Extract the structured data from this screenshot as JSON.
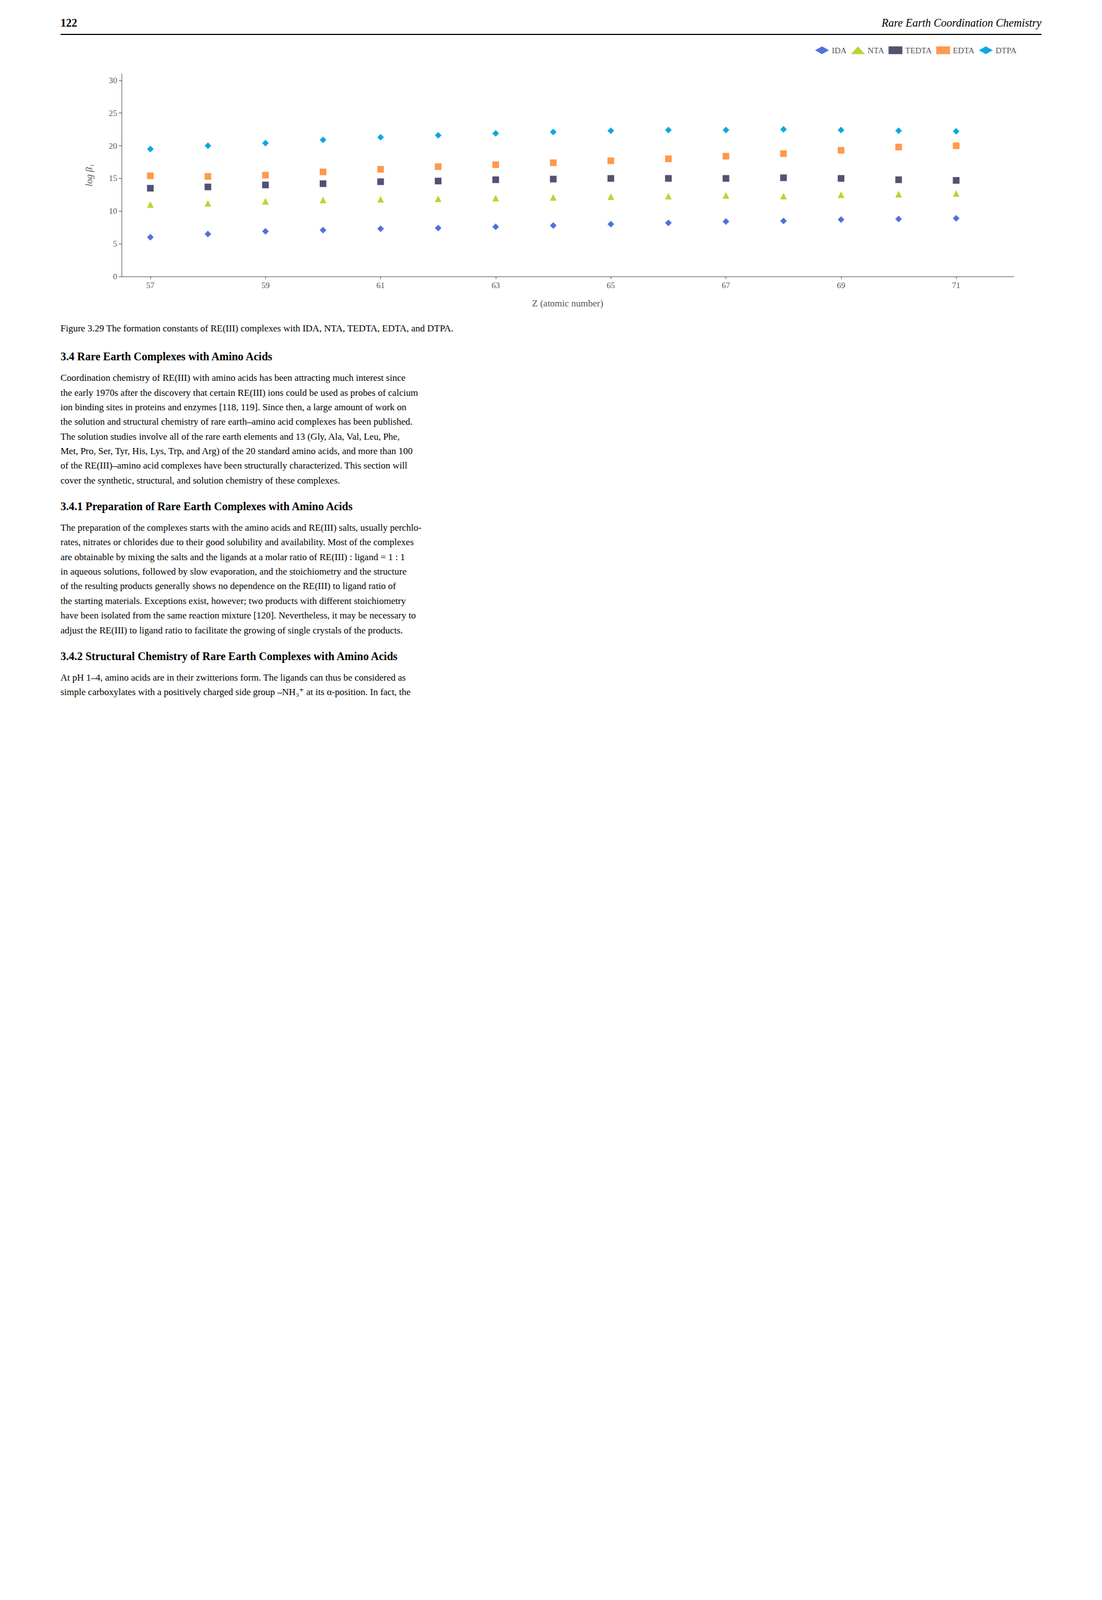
{
  "chart_data": {
    "type": "scatter",
    "xlabel": "Z (atomic number)",
    "ylabel": "log β₁",
    "xlim": [
      56.5,
      72.0
    ],
    "ylim": [
      0,
      31
    ],
    "xticks": [
      57,
      59,
      61,
      63,
      65,
      67,
      69,
      71
    ],
    "yticks": [
      0,
      5,
      10,
      15,
      20,
      25,
      30
    ],
    "grid": false,
    "legend": "upper right",
    "x": [
      57,
      58,
      59,
      60,
      61,
      62,
      63,
      64,
      65,
      66,
      67,
      68,
      69,
      70,
      71
    ],
    "series": [
      {
        "name": "IDA",
        "marker": "diamond",
        "values": [
          6.0,
          6.5,
          6.9,
          7.1,
          7.3,
          7.4,
          7.6,
          7.8,
          8.0,
          8.2,
          8.4,
          8.5,
          8.7,
          8.8,
          8.9
        ]
      },
      {
        "name": "NTA",
        "marker": "triangle",
        "values": [
          11.0,
          11.2,
          11.5,
          11.7,
          11.8,
          11.9,
          12.0,
          12.1,
          12.2,
          12.3,
          12.4,
          12.3,
          12.5,
          12.6,
          12.7
        ]
      },
      {
        "name": "TEDTA",
        "marker": "square",
        "values": [
          13.5,
          13.7,
          14.0,
          14.2,
          14.5,
          14.6,
          14.8,
          14.9,
          15.0,
          15.0,
          15.0,
          15.1,
          15.0,
          14.8,
          14.7
        ]
      },
      {
        "name": "EDTA",
        "marker": "square",
        "values": [
          15.4,
          15.3,
          15.5,
          16.0,
          16.4,
          16.8,
          17.1,
          17.4,
          17.7,
          18.0,
          18.4,
          18.8,
          19.3,
          19.8,
          20.0
        ]
      },
      {
        "name": "DTPA",
        "marker": "diamond",
        "values": [
          19.5,
          20.0,
          20.4,
          20.9,
          21.3,
          21.6,
          21.9,
          22.1,
          22.3,
          22.4,
          22.4,
          22.5,
          22.4,
          22.3,
          22.2
        ]
      }
    ],
    "annotations": [
      [
        "122",
        "Rare Earth Coordination Chemistry"
      ],
      [
        "Figure 3.29   The formation constants of RE(III) complexes with IDA, NTA, TEDTA, EDTA, and DTPA."
      ],
      [
        "3.4  Rare Earth Complexes with Amino Acids"
      ],
      [
        "Coordination chemistry of RE(III) with amino acids has been attracting much interest since",
        "the early 1970s after the discovery that certain RE(III) ions could be used as probes of calcium",
        "ion binding sites in proteins and enzymes [118, 119]. Since then, a large amount of work on",
        "the solution and structural chemistry of rare earth–amino acid complexes has been published.",
        "The solution studies involve all of the rare earth elements and 13 (Gly, Ala, Val, Leu, Phe,",
        "Met, Pro, Ser, Tyr, His, Lys, Trp, and Arg) of the 20 standard amino acids, and more than 100",
        "of the RE(III)–amino acid complexes have been structurally characterized. This section will",
        "cover the synthetic, structural, and solution chemistry of these complexes."
      ],
      [
        "3.4.1  Preparation of Rare Earth Complexes with Amino Acids"
      ],
      [
        "The preparation of the complexes starts with the amino acids and RE(III) salts, usually perchlo-",
        "rates, nitrates or chlorides due to their good solubility and availability. Most of the complexes",
        "are obtainable by mixing the salts and the ligands at a molar ratio of RE(III) : ligand = 1 : 1",
        "in aqueous solutions, followed by slow evaporation, and the stoichiometry and the structure",
        "of the resulting products generally shows no dependence on the RE(III) to ligand ratio of",
        "the starting materials. Exceptions exist, however; two products with different stoichiometry",
        "have been isolated from the same reaction mixture [120]. Nevertheless, it may be necessary to",
        "adjust the RE(III) to ligand ratio to facilitate the growing of single crystals of the products."
      ],
      [
        "3.4.2  Structural Chemistry of Rare Earth Complexes with Amino Acids"
      ],
      [
        "At pH 1–4, amino acids are in their zwitterions form. The ligands can thus be considered as",
        "simple carboxylates with a positively charged side group –NH₃⁺ at its α-position. In fact, the"
      ]
    ]
  }
}
